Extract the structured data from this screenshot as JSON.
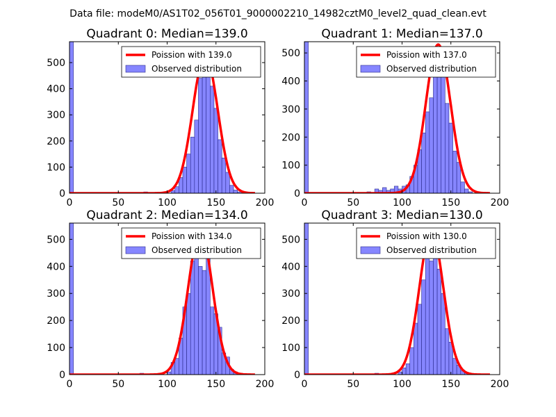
{
  "figure_title": "Data file: modeM0/AS1T02_056T01_9000002210_14982cztM0_level2_quad_clean.evt",
  "colors": {
    "bar_fill": "#7f7fff",
    "bar_edge": "#2a2a8a",
    "line": "#ff0000"
  },
  "chart_data": [
    {
      "type": "bar",
      "title": "Quadrant 0: Median=139.0",
      "median": 139.0,
      "xlim": [
        0,
        200
      ],
      "ylim": [
        0,
        580
      ],
      "xticks": [
        0,
        50,
        100,
        150,
        200
      ],
      "yticks": [
        0,
        100,
        200,
        300,
        400,
        500
      ],
      "bin_width": 4,
      "legend": [
        "Poission with 139.0",
        "Observed distribution"
      ],
      "bins": [
        {
          "x": 0,
          "v": 580
        },
        {
          "x": 76,
          "v": 5
        },
        {
          "x": 104,
          "v": 10
        },
        {
          "x": 108,
          "v": 25
        },
        {
          "x": 112,
          "v": 60
        },
        {
          "x": 116,
          "v": 100
        },
        {
          "x": 120,
          "v": 150
        },
        {
          "x": 124,
          "v": 215
        },
        {
          "x": 128,
          "v": 280
        },
        {
          "x": 132,
          "v": 440
        },
        {
          "x": 136,
          "v": 510
        },
        {
          "x": 140,
          "v": 470
        },
        {
          "x": 144,
          "v": 410
        },
        {
          "x": 148,
          "v": 325
        },
        {
          "x": 152,
          "v": 205
        },
        {
          "x": 156,
          "v": 135
        },
        {
          "x": 160,
          "v": 80
        },
        {
          "x": 164,
          "v": 30
        },
        {
          "x": 168,
          "v": 12
        },
        {
          "x": 172,
          "v": 5
        }
      ]
    },
    {
      "type": "bar",
      "title": "Quadrant 1: Median=137.0",
      "median": 137.0,
      "xlim": [
        0,
        200
      ],
      "ylim": [
        0,
        540
      ],
      "xticks": [
        0,
        50,
        100,
        150,
        200
      ],
      "yticks": [
        0,
        100,
        200,
        300,
        400,
        500
      ],
      "bin_width": 4,
      "legend": [
        "Poission with 137.0",
        "Observed distribution"
      ],
      "bins": [
        {
          "x": 0,
          "v": 540
        },
        {
          "x": 64,
          "v": 5
        },
        {
          "x": 72,
          "v": 15
        },
        {
          "x": 76,
          "v": 10
        },
        {
          "x": 80,
          "v": 20
        },
        {
          "x": 84,
          "v": 10
        },
        {
          "x": 88,
          "v": 15
        },
        {
          "x": 92,
          "v": 25
        },
        {
          "x": 96,
          "v": 15
        },
        {
          "x": 100,
          "v": 25
        },
        {
          "x": 104,
          "v": 30
        },
        {
          "x": 108,
          "v": 60
        },
        {
          "x": 112,
          "v": 100
        },
        {
          "x": 116,
          "v": 155
        },
        {
          "x": 120,
          "v": 215
        },
        {
          "x": 124,
          "v": 290
        },
        {
          "x": 128,
          "v": 340
        },
        {
          "x": 132,
          "v": 430
        },
        {
          "x": 136,
          "v": 520
        },
        {
          "x": 140,
          "v": 440
        },
        {
          "x": 144,
          "v": 320
        },
        {
          "x": 148,
          "v": 250
        },
        {
          "x": 152,
          "v": 150
        },
        {
          "x": 156,
          "v": 110
        },
        {
          "x": 160,
          "v": 40
        },
        {
          "x": 164,
          "v": 15
        },
        {
          "x": 168,
          "v": 5
        }
      ]
    },
    {
      "type": "bar",
      "title": "Quadrant 2: Median=134.0",
      "median": 134.0,
      "xlim": [
        0,
        200
      ],
      "ylim": [
        0,
        560
      ],
      "xticks": [
        0,
        50,
        100,
        150,
        200
      ],
      "yticks": [
        0,
        100,
        200,
        300,
        400,
        500
      ],
      "bin_width": 4,
      "legend": [
        "Poission with 134.0",
        "Observed distribution"
      ],
      "bins": [
        {
          "x": 0,
          "v": 560
        },
        {
          "x": 72,
          "v": 5
        },
        {
          "x": 100,
          "v": 10
        },
        {
          "x": 104,
          "v": 45
        },
        {
          "x": 108,
          "v": 60
        },
        {
          "x": 112,
          "v": 135
        },
        {
          "x": 116,
          "v": 250
        },
        {
          "x": 120,
          "v": 300
        },
        {
          "x": 124,
          "v": 420
        },
        {
          "x": 128,
          "v": 490
        },
        {
          "x": 132,
          "v": 400
        },
        {
          "x": 136,
          "v": 385
        },
        {
          "x": 140,
          "v": 445
        },
        {
          "x": 144,
          "v": 250
        },
        {
          "x": 148,
          "v": 225
        },
        {
          "x": 152,
          "v": 175
        },
        {
          "x": 156,
          "v": 80
        },
        {
          "x": 160,
          "v": 65
        },
        {
          "x": 164,
          "v": 20
        },
        {
          "x": 168,
          "v": 10
        },
        {
          "x": 172,
          "v": 3
        }
      ]
    },
    {
      "type": "bar",
      "title": "Quadrant 3: Median=130.0",
      "median": 130.0,
      "xlim": [
        0,
        200
      ],
      "ylim": [
        0,
        560
      ],
      "xticks": [
        0,
        50,
        100,
        150,
        200
      ],
      "yticks": [
        0,
        100,
        200,
        300,
        400,
        500
      ],
      "bin_width": 4,
      "legend": [
        "Poission with 130.0",
        "Observed distribution"
      ],
      "bins": [
        {
          "x": 0,
          "v": 560
        },
        {
          "x": 72,
          "v": 5
        },
        {
          "x": 96,
          "v": 10
        },
        {
          "x": 100,
          "v": 25
        },
        {
          "x": 104,
          "v": 40
        },
        {
          "x": 108,
          "v": 100
        },
        {
          "x": 112,
          "v": 190
        },
        {
          "x": 116,
          "v": 260
        },
        {
          "x": 120,
          "v": 350
        },
        {
          "x": 124,
          "v": 480
        },
        {
          "x": 128,
          "v": 420
        },
        {
          "x": 132,
          "v": 530
        },
        {
          "x": 136,
          "v": 390
        },
        {
          "x": 140,
          "v": 300
        },
        {
          "x": 144,
          "v": 170
        },
        {
          "x": 148,
          "v": 120
        },
        {
          "x": 152,
          "v": 60
        },
        {
          "x": 156,
          "v": 35
        },
        {
          "x": 160,
          "v": 15
        },
        {
          "x": 164,
          "v": 8
        },
        {
          "x": 168,
          "v": 3
        }
      ]
    }
  ]
}
